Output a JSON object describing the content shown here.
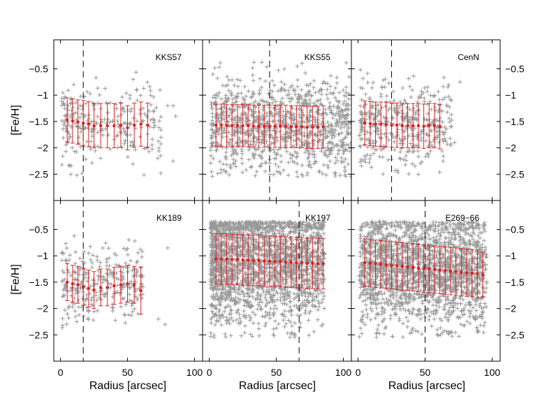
{
  "chart_data": {
    "type": "scatter",
    "layout": "2x3 grid of panels with shared axes",
    "xlabel": "Radius [arcsec]",
    "ylabel": "[Fe/H]",
    "xlim": [
      -5,
      106
    ],
    "ylim": [
      -3.0,
      0.05
    ],
    "y_inverted": true,
    "xticks": [
      0,
      50,
      100
    ],
    "yticks": [
      -0.5,
      -1,
      -1.5,
      -2,
      -2.5
    ],
    "y_tick_labels": [
      "−0.5",
      "−1",
      "−1.5",
      "−2",
      "−2.5"
    ],
    "x_tick_labels": [
      "0",
      "50",
      "100"
    ],
    "colors": {
      "stars": "#999999",
      "profile": "#e41a1c",
      "reference_line": "#000000"
    },
    "panels": [
      {
        "name": "KKS57",
        "row": 0,
        "col": 0,
        "reference_radius": 17,
        "stars": {
          "count": 260,
          "r_max": 75,
          "center": -1.55,
          "spread": 0.38,
          "outliers": [
            [
              80,
              -1.2
            ],
            [
              84,
              -1.2
            ],
            [
              86,
              -1.4
            ],
            [
              84,
              -2.25
            ],
            [
              75,
              -1.8
            ]
          ]
        },
        "profile": {
          "r": [
            5,
            9,
            13,
            17,
            21,
            25,
            30,
            35,
            40,
            45,
            50,
            55,
            60,
            65
          ],
          "mean": [
            -1.47,
            -1.49,
            -1.51,
            -1.53,
            -1.55,
            -1.58,
            -1.58,
            -1.58,
            -1.58,
            -1.57,
            -1.62,
            -1.57,
            -1.55,
            -1.57
          ],
          "sd": [
            0.42,
            0.42,
            0.42,
            0.43,
            0.43,
            0.42,
            0.42,
            0.42,
            0.42,
            0.42,
            0.42,
            0.42,
            0.42,
            0.42
          ]
        }
      },
      {
        "name": "KKS55",
        "row": 0,
        "col": 1,
        "reference_radius": 45,
        "stars": {
          "count": 1100,
          "r_max": 106,
          "center": -1.6,
          "spread": 0.45,
          "outliers": []
        },
        "profile": {
          "r": [
            5,
            9,
            13,
            17,
            21,
            25,
            29,
            33,
            37,
            41,
            45,
            49,
            53,
            57,
            61,
            65,
            69,
            73,
            77,
            81,
            85
          ],
          "mean": [
            -1.57,
            -1.57,
            -1.58,
            -1.58,
            -1.58,
            -1.58,
            -1.58,
            -1.59,
            -1.59,
            -1.59,
            -1.59,
            -1.59,
            -1.59,
            -1.59,
            -1.6,
            -1.6,
            -1.6,
            -1.61,
            -1.61,
            -1.61,
            -1.6
          ],
          "sd": [
            0.4,
            0.4,
            0.4,
            0.4,
            0.4,
            0.4,
            0.4,
            0.4,
            0.4,
            0.4,
            0.4,
            0.4,
            0.4,
            0.4,
            0.4,
            0.4,
            0.4,
            0.4,
            0.4,
            0.4,
            0.4
          ]
        }
      },
      {
        "name": "CenN",
        "row": 0,
        "col": 2,
        "reference_radius": 25,
        "stars": {
          "count": 420,
          "r_max": 70,
          "center": -1.55,
          "spread": 0.4,
          "outliers": [
            [
              76,
              -0.75
            ],
            [
              72,
              -1.9
            ],
            [
              69,
              -1.6
            ]
          ]
        },
        "profile": {
          "r": [
            5,
            9,
            13,
            17,
            21,
            25,
            29,
            33,
            37,
            41,
            45,
            49,
            53,
            57,
            61
          ],
          "mean": [
            -1.53,
            -1.54,
            -1.55,
            -1.55,
            -1.56,
            -1.57,
            -1.57,
            -1.58,
            -1.58,
            -1.58,
            -1.58,
            -1.59,
            -1.58,
            -1.58,
            -1.6
          ],
          "sd": [
            0.42,
            0.42,
            0.42,
            0.42,
            0.42,
            0.42,
            0.42,
            0.42,
            0.42,
            0.42,
            0.42,
            0.42,
            0.42,
            0.42,
            0.42
          ]
        }
      },
      {
        "name": "KK189",
        "row": 1,
        "col": 0,
        "reference_radius": 17,
        "stars": {
          "count": 300,
          "r_max": 62,
          "center": -1.55,
          "spread": 0.35,
          "outliers": [
            [
              80,
              -0.85
            ],
            [
              78,
              -2.3
            ],
            [
              73,
              -2.2
            ]
          ]
        },
        "profile": {
          "r": [
            5,
            9,
            13,
            17,
            21,
            25,
            30,
            35,
            40,
            45,
            50,
            55,
            60
          ],
          "mean": [
            -1.5,
            -1.53,
            -1.55,
            -1.59,
            -1.62,
            -1.65,
            -1.6,
            -1.6,
            -1.57,
            -1.55,
            -1.53,
            -1.55,
            -1.66
          ],
          "sd": [
            0.35,
            0.35,
            0.35,
            0.35,
            0.35,
            0.35,
            0.35,
            0.35,
            0.35,
            0.35,
            0.35,
            0.35,
            0.45
          ]
        }
      },
      {
        "name": "KK197",
        "row": 1,
        "col": 1,
        "reference_radius": 67,
        "stars": {
          "count": 2200,
          "r_max": 86,
          "center": -1.1,
          "spread": 0.6,
          "outliers": []
        },
        "profile": {
          "r": [
            5,
            9,
            13,
            17,
            21,
            25,
            29,
            33,
            37,
            41,
            45,
            49,
            53,
            57,
            61,
            65,
            69,
            73,
            77,
            81,
            85
          ],
          "mean": [
            -1.06,
            -1.06,
            -1.06,
            -1.07,
            -1.07,
            -1.08,
            -1.08,
            -1.09,
            -1.09,
            -1.1,
            -1.1,
            -1.11,
            -1.11,
            -1.12,
            -1.12,
            -1.13,
            -1.13,
            -1.14,
            -1.14,
            -1.15,
            -1.15
          ],
          "sd": [
            0.48,
            0.48,
            0.48,
            0.48,
            0.48,
            0.48,
            0.48,
            0.48,
            0.48,
            0.48,
            0.48,
            0.48,
            0.48,
            0.48,
            0.48,
            0.48,
            0.48,
            0.48,
            0.48,
            0.48,
            0.48
          ]
        }
      },
      {
        "name": "E269−66",
        "row": 1,
        "col": 2,
        "reference_radius": 50,
        "stars": {
          "count": 2000,
          "r_max": 96,
          "center": -1.25,
          "spread": 0.55,
          "outliers": []
        },
        "profile": {
          "r": [
            5,
            9,
            13,
            17,
            21,
            25,
            29,
            33,
            37,
            41,
            45,
            49,
            53,
            57,
            61,
            65,
            69,
            73,
            77,
            81,
            85,
            89,
            93
          ],
          "mean": [
            -1.13,
            -1.14,
            -1.15,
            -1.16,
            -1.17,
            -1.18,
            -1.19,
            -1.2,
            -1.21,
            -1.22,
            -1.23,
            -1.24,
            -1.25,
            -1.26,
            -1.27,
            -1.28,
            -1.29,
            -1.3,
            -1.31,
            -1.32,
            -1.33,
            -1.34,
            -1.36
          ],
          "sd": [
            0.45,
            0.45,
            0.45,
            0.45,
            0.45,
            0.45,
            0.45,
            0.45,
            0.45,
            0.45,
            0.45,
            0.45,
            0.45,
            0.45,
            0.45,
            0.45,
            0.45,
            0.45,
            0.45,
            0.45,
            0.45,
            0.45,
            0.42
          ]
        }
      }
    ]
  }
}
